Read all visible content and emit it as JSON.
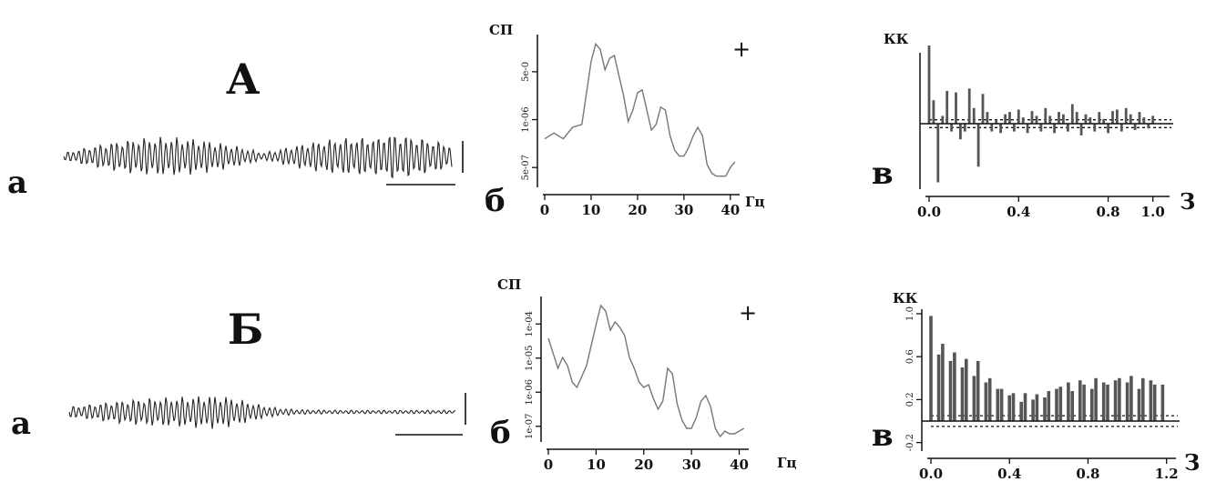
{
  "panels": [
    {
      "section_label": "А",
      "eeg": {
        "label": "а"
      },
      "spectrum": {
        "label": "б",
        "ylabel": "СП",
        "xlabel": "Гц",
        "marker": "+"
      },
      "correlation": {
        "label": "в",
        "ylabel": "КК",
        "xlabel": "З"
      }
    },
    {
      "section_label": "Б",
      "eeg": {
        "label": "а"
      },
      "spectrum": {
        "label": "б",
        "ylabel": "СП",
        "xlabel": "Гц",
        "marker": "+"
      },
      "correlation": {
        "label": "в",
        "ylabel": "КК",
        "xlabel": "З"
      }
    }
  ],
  "chart_data": [
    {
      "type": "line",
      "panel": "А-б",
      "x_ticks": [
        "0",
        "10",
        "20",
        "30",
        "40"
      ],
      "y_ticks": [
        "5e-07",
        "1e-06",
        "5e-0"
      ],
      "xlim": [
        0,
        42
      ],
      "log_scale_y": true,
      "x": [
        0,
        2,
        4,
        6,
        8,
        10,
        11,
        12,
        13,
        14,
        15,
        16,
        17,
        18,
        19,
        20,
        21,
        22,
        23,
        24,
        25,
        26,
        27,
        28,
        29,
        30,
        31,
        32,
        33,
        34,
        35,
        36,
        37,
        38,
        39,
        40,
        41
      ],
      "values": [
        0.3,
        0.34,
        0.3,
        0.38,
        0.4,
        0.84,
        0.96,
        0.92,
        0.78,
        0.86,
        0.88,
        0.74,
        0.6,
        0.42,
        0.5,
        0.62,
        0.64,
        0.5,
        0.36,
        0.4,
        0.52,
        0.5,
        0.32,
        0.22,
        0.18,
        0.18,
        0.24,
        0.32,
        0.38,
        0.32,
        0.12,
        0.06,
        0.04,
        0.04,
        0.04,
        0.1,
        0.14
      ]
    },
    {
      "type": "bar",
      "panel": "А-в",
      "x_ticks": [
        "0.0",
        "0.4",
        "0.8",
        "1.0"
      ],
      "xlim": [
        0,
        1.05
      ],
      "confidence_band": [
        -0.05,
        0.05
      ],
      "x": [
        0.0,
        0.02,
        0.04,
        0.06,
        0.08,
        0.1,
        0.12,
        0.14,
        0.16,
        0.18,
        0.2,
        0.22,
        0.24,
        0.26,
        0.28,
        0.3,
        0.32,
        0.34,
        0.36,
        0.38,
        0.4,
        0.42,
        0.44,
        0.46,
        0.48,
        0.5,
        0.52,
        0.54,
        0.56,
        0.58,
        0.6,
        0.62,
        0.64,
        0.66,
        0.68,
        0.7,
        0.72,
        0.74,
        0.76,
        0.78,
        0.8,
        0.82,
        0.84,
        0.86,
        0.88,
        0.9,
        0.92,
        0.94,
        0.96,
        0.98,
        1.0
      ],
      "values": [
        1.0,
        0.3,
        -0.75,
        0.1,
        0.42,
        -0.1,
        0.4,
        -0.2,
        -0.1,
        0.45,
        0.2,
        -0.55,
        0.38,
        0.15,
        -0.1,
        0.05,
        -0.12,
        0.12,
        0.15,
        -0.1,
        0.18,
        0.08,
        -0.12,
        0.16,
        0.1,
        -0.1,
        0.2,
        0.1,
        -0.12,
        0.15,
        0.12,
        -0.1,
        0.25,
        0.15,
        -0.15,
        0.12,
        0.08,
        -0.1,
        0.15,
        0.06,
        -0.12,
        0.16,
        0.18,
        -0.1,
        0.2,
        0.12,
        -0.08,
        0.15,
        0.08,
        -0.06,
        0.1
      ]
    },
    {
      "type": "line",
      "panel": "Б-б",
      "x_ticks": [
        "0",
        "10",
        "20",
        "30",
        "40"
      ],
      "y_ticks": [
        "1e-07",
        "1e-06",
        "1e-05",
        "1e-04"
      ],
      "xlim": [
        0,
        42
      ],
      "log_scale_y": true,
      "x": [
        0,
        2,
        3,
        4,
        5,
        6,
        8,
        10,
        11,
        12,
        13,
        14,
        15,
        16,
        17,
        18,
        19,
        20,
        21,
        22,
        23,
        24,
        25,
        26,
        27,
        28,
        29,
        30,
        31,
        32,
        33,
        34,
        35,
        36,
        37,
        38,
        39,
        40,
        41
      ],
      "values": [
        0.72,
        0.5,
        0.58,
        0.52,
        0.4,
        0.36,
        0.52,
        0.82,
        0.96,
        0.92,
        0.78,
        0.84,
        0.8,
        0.74,
        0.58,
        0.5,
        0.4,
        0.36,
        0.38,
        0.28,
        0.2,
        0.26,
        0.5,
        0.46,
        0.24,
        0.12,
        0.06,
        0.06,
        0.14,
        0.26,
        0.3,
        0.22,
        0.06,
        0.0,
        0.04,
        0.02,
        0.02,
        0.04,
        0.06
      ]
    },
    {
      "type": "bar",
      "panel": "Б-в",
      "x_ticks": [
        "0.0",
        "0.4",
        "0.8",
        "1.2"
      ],
      "y_ticks": [
        "-0.2",
        "0.2",
        "0.6",
        "1.0"
      ],
      "xlim": [
        0,
        1.22
      ],
      "ylim": [
        -0.25,
        1.0
      ],
      "confidence_band": [
        -0.05,
        0.05
      ],
      "x": [
        0.0,
        0.04,
        0.06,
        0.1,
        0.12,
        0.16,
        0.18,
        0.22,
        0.24,
        0.28,
        0.3,
        0.34,
        0.36,
        0.4,
        0.42,
        0.46,
        0.48,
        0.52,
        0.54,
        0.58,
        0.6,
        0.64,
        0.66,
        0.7,
        0.72,
        0.76,
        0.78,
        0.82,
        0.84,
        0.88,
        0.9,
        0.94,
        0.96,
        1.0,
        1.02,
        1.06,
        1.08,
        1.12,
        1.14,
        1.18
      ],
      "values": [
        0.98,
        0.62,
        0.72,
        0.56,
        0.64,
        0.5,
        0.58,
        0.42,
        0.56,
        0.36,
        0.4,
        0.3,
        0.3,
        0.24,
        0.26,
        0.18,
        0.26,
        0.2,
        0.25,
        0.22,
        0.28,
        0.3,
        0.32,
        0.36,
        0.28,
        0.38,
        0.34,
        0.3,
        0.4,
        0.36,
        0.34,
        0.38,
        0.4,
        0.36,
        0.42,
        0.3,
        0.4,
        0.38,
        0.34,
        0.34
      ]
    }
  ]
}
